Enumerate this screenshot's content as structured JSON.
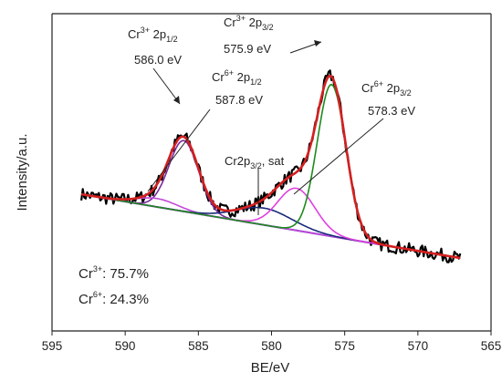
{
  "chart_data": {
    "type": "line",
    "xlabel": "BE/eV",
    "ylabel": "Intensity/a.u.",
    "xlim": [
      595,
      565
    ],
    "x_ticks": [
      595,
      590,
      585,
      580,
      575,
      570,
      565
    ],
    "y_tick_labels_shown": false,
    "grid": false,
    "colors": {
      "raw": "#000000",
      "envelope": "#d42020",
      "background": "#6a2bd6",
      "cr3_2p12": "#7a2a9a",
      "cr6_2p12": "#c24ad8",
      "sat": "#1a2a7a",
      "cr6_2p32": "#e040e0",
      "cr3_2p32": "#1d8a1d"
    },
    "peaks": {
      "cr3_2p12": {
        "center": 586.0,
        "height": 0.42,
        "fwhm": 2.4
      },
      "cr6_2p12": {
        "center": 587.8,
        "height": 0.05,
        "fwhm": 3.2
      },
      "sat": {
        "center": 580.5,
        "height": 0.1,
        "fwhm": 4.5
      },
      "cr6_2p32": {
        "center": 578.3,
        "height": 0.25,
        "fwhm": 3.0
      },
      "cr3_2p32": {
        "center": 575.9,
        "height": 0.9,
        "fwhm": 2.3
      }
    },
    "background": {
      "x": [
        593,
        567
      ],
      "y": [
        0.0,
        -0.38
      ]
    },
    "annotations": {
      "cr3_2p32": {
        "species": "Cr",
        "sup": "3+",
        "orbital": "2p",
        "sub": "3/2",
        "energy": "575.9 eV"
      },
      "cr3_2p12": {
        "species": "Cr",
        "sup": "3+",
        "orbital": "2p",
        "sub": "1/2",
        "energy": "586.0 eV"
      },
      "cr6_2p12": {
        "species": "Cr",
        "sup": "6+",
        "orbital": "2p",
        "sub": "1/2",
        "energy": "587.8 eV"
      },
      "cr6_2p32": {
        "species": "Cr",
        "sup": "6+",
        "orbital": "2p",
        "sub": "3/2",
        "energy": "578.3 eV"
      },
      "sat": {
        "prefix": "Cr2p",
        "sub": "3/2",
        "suffix": ", sat"
      }
    },
    "composition": [
      {
        "species": "Cr",
        "sup": "3+",
        "value": ": 75.7%"
      },
      {
        "species": "Cr",
        "sup": "6+",
        "value": ": 24.3%"
      }
    ]
  }
}
